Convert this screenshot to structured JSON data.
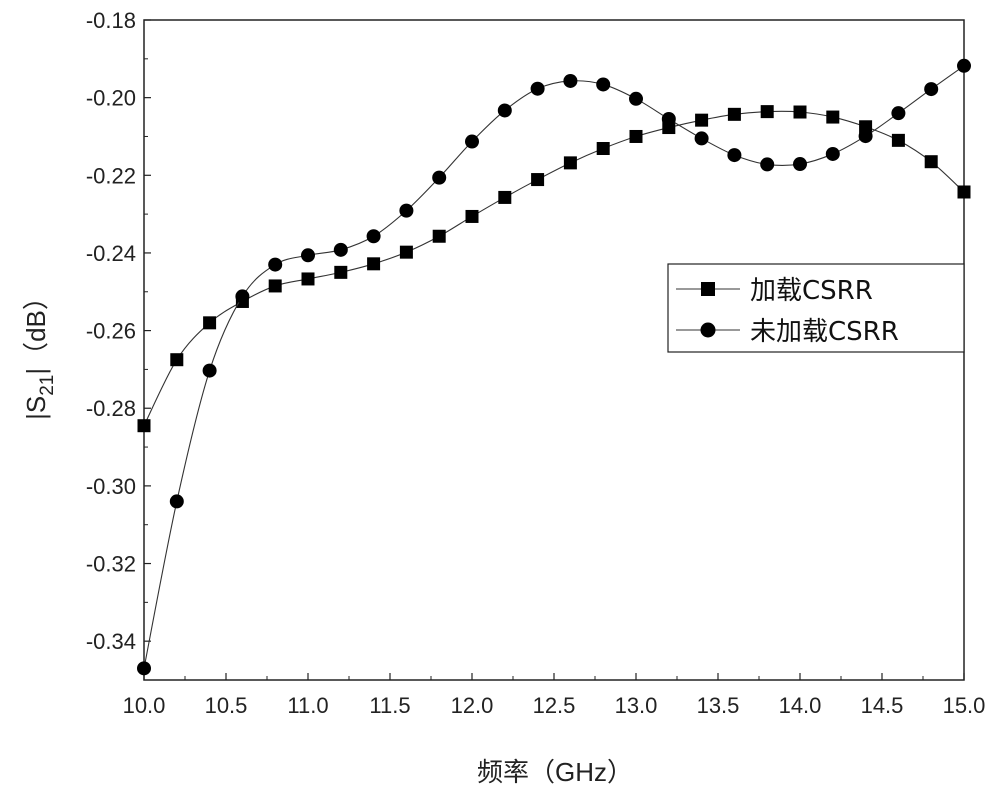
{
  "chart_data": {
    "type": "line",
    "title": "",
    "xlabel": "频率（GHz）",
    "ylabel_main": "|S",
    "ylabel_sub": "21",
    "ylabel_tail": "|（dB）",
    "xlim": [
      10.0,
      15.0
    ],
    "ylim": [
      -0.35,
      -0.18
    ],
    "x_ticks": [
      10.0,
      10.5,
      11.0,
      11.5,
      12.0,
      12.5,
      13.0,
      13.5,
      14.0,
      14.5,
      15.0
    ],
    "x_tick_labels": [
      "10.0",
      "10.5",
      "11.0",
      "11.5",
      "12.0",
      "12.5",
      "13.0",
      "13.5",
      "14.0",
      "14.5",
      "15.0"
    ],
    "y_ticks": [
      -0.34,
      -0.32,
      -0.3,
      -0.28,
      -0.26,
      -0.24,
      -0.22,
      -0.2,
      -0.18
    ],
    "y_tick_labels": [
      "-0.34",
      "-0.32",
      "-0.30",
      "-0.28",
      "-0.26",
      "-0.24",
      "-0.22",
      "-0.20",
      "-0.18"
    ],
    "legend_position": "center-right",
    "grid": false,
    "series": [
      {
        "name": "加载CSRR",
        "marker": "square",
        "x": [
          10.0,
          10.2,
          10.4,
          10.6,
          10.8,
          11.0,
          11.2,
          11.4,
          11.6,
          11.8,
          12.0,
          12.2,
          12.4,
          12.6,
          12.8,
          13.0,
          13.2,
          13.4,
          13.6,
          13.8,
          14.0,
          14.2,
          14.4,
          14.6,
          14.8,
          15.0
        ],
        "values": [
          -0.2845,
          -0.2675,
          -0.258,
          -0.2525,
          -0.2485,
          -0.2467,
          -0.245,
          -0.2428,
          -0.2398,
          -0.2357,
          -0.2306,
          -0.2257,
          -0.2211,
          -0.2168,
          -0.2131,
          -0.21,
          -0.2077,
          -0.2058,
          -0.2043,
          -0.2036,
          -0.2037,
          -0.205,
          -0.2075,
          -0.211,
          -0.2165,
          -0.2243
        ]
      },
      {
        "name": "未加载CSRR",
        "marker": "circle",
        "x": [
          10.0,
          10.2,
          10.4,
          10.6,
          10.8,
          11.0,
          11.2,
          11.4,
          11.6,
          11.8,
          12.0,
          12.2,
          12.4,
          12.6,
          12.8,
          13.0,
          13.2,
          13.4,
          13.6,
          13.8,
          14.0,
          14.2,
          14.4,
          14.6,
          14.8,
          15.0
        ],
        "values": [
          -0.347,
          -0.304,
          -0.2703,
          -0.2512,
          -0.243,
          -0.2406,
          -0.2392,
          -0.2357,
          -0.2291,
          -0.2206,
          -0.2113,
          -0.2033,
          -0.1977,
          -0.1957,
          -0.1966,
          -0.2003,
          -0.2055,
          -0.2105,
          -0.2148,
          -0.2172,
          -0.2171,
          -0.2145,
          -0.2099,
          -0.204,
          -0.1978,
          -0.1918
        ]
      }
    ]
  }
}
